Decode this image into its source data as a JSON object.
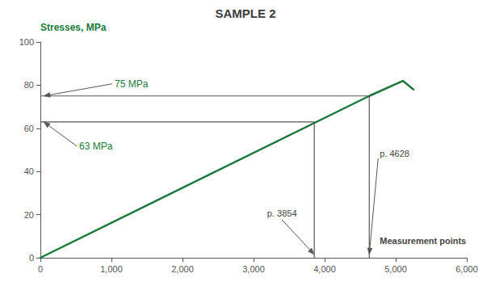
{
  "chart_data": {
    "type": "line",
    "title": "SAMPLE 2",
    "ylabel": "Stresses, MPa",
    "x": [
      0,
      4628,
      5100,
      5250
    ],
    "values": [
      0,
      75,
      82,
      78
    ],
    "color": "#1a7a3c",
    "xlim": [
      0,
      6000
    ],
    "ylim": [
      0,
      100
    ],
    "xticks": [
      0,
      1000,
      2000,
      3000,
      4000,
      5000,
      6000
    ],
    "yticks": [
      0,
      20,
      40,
      60,
      80,
      100
    ],
    "grid": false,
    "reference_points": [
      {
        "x": 3854,
        "y": 63,
        "color": "#555555"
      },
      {
        "x": 4628,
        "y": 75,
        "color": "#555555"
      }
    ],
    "annotations": [
      {
        "text": "75 MPa",
        "x": 0,
        "y": 75,
        "color": "#1a7a3c"
      },
      {
        "text": "63 MPa",
        "x": 0,
        "y": 63,
        "color": "#1a7a3c"
      },
      {
        "text": "p. 3854",
        "x": 3854,
        "y": 0,
        "color": "#444444"
      },
      {
        "text": "p. 4628",
        "x": 4628,
        "y": 0,
        "color": "#444444"
      },
      {
        "text": "Measurement points",
        "color": "#444444"
      }
    ]
  }
}
